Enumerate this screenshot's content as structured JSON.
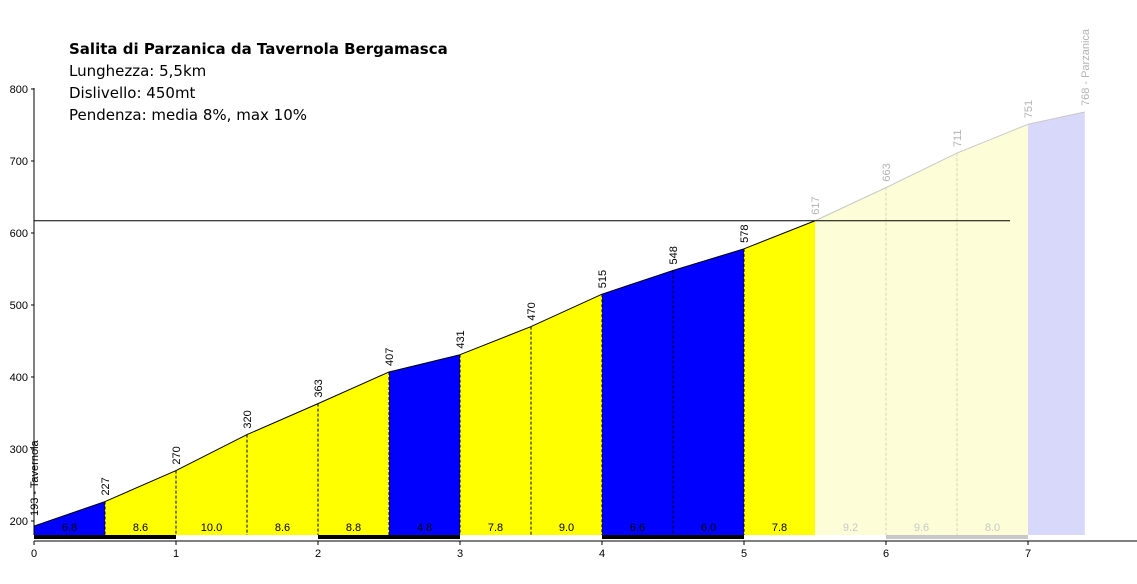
{
  "header": {
    "title": "Salita di Parzanica da Tavernola Bergamasca",
    "length_line": "Lunghezza: 5,5km",
    "climb_line": "Dislivello: 450mt",
    "grade_line": "Pendenza: media 8%, max 10%"
  },
  "chart_data": {
    "type": "area",
    "title": "Salita di Parzanica da Tavernola Bergamasca",
    "xlabel": "",
    "ylabel": "",
    "xlim": [
      0,
      7.5
    ],
    "ylim": [
      180,
      800
    ],
    "x_ticks": [
      0,
      1,
      2,
      3,
      4,
      5,
      6,
      7
    ],
    "y_ticks": [
      200,
      300,
      400,
      500,
      600,
      700,
      800
    ],
    "grid": false,
    "reference_line": 617,
    "start_label": "193 - Tavernola",
    "end_label": "768 - Parzanica",
    "points": [
      {
        "x": 0,
        "y": 193,
        "label": "193 - Tavernola"
      },
      {
        "x": 0.5,
        "y": 227,
        "label": "227"
      },
      {
        "x": 1,
        "y": 270,
        "label": "270"
      },
      {
        "x": 1.5,
        "y": 320,
        "label": "320"
      },
      {
        "x": 2,
        "y": 363,
        "label": "363"
      },
      {
        "x": 2.5,
        "y": 407,
        "label": "407"
      },
      {
        "x": 3,
        "y": 431,
        "label": "431"
      },
      {
        "x": 3.5,
        "y": 470,
        "label": "470"
      },
      {
        "x": 4,
        "y": 515,
        "label": "515"
      },
      {
        "x": 4.5,
        "y": 548,
        "label": "548"
      },
      {
        "x": 5,
        "y": 578,
        "label": "578"
      },
      {
        "x": 5.5,
        "y": 617,
        "label": "617"
      },
      {
        "x": 6,
        "y": 663,
        "label": "663"
      },
      {
        "x": 6.5,
        "y": 711,
        "label": "711"
      },
      {
        "x": 7,
        "y": 751,
        "label": "751"
      },
      {
        "x": 7.4,
        "y": 768,
        "label": "768 - Parzanica"
      }
    ],
    "segments": [
      {
        "from": 0,
        "to": 0.5,
        "grade": "6.8",
        "color": "#0000ff",
        "faded": false
      },
      {
        "from": 0.5,
        "to": 1,
        "grade": "8.6",
        "color": "#ffff00",
        "faded": false
      },
      {
        "from": 1,
        "to": 1.5,
        "grade": "10.0",
        "color": "#ffff00",
        "faded": false
      },
      {
        "from": 1.5,
        "to": 2,
        "grade": "8.6",
        "color": "#ffff00",
        "faded": false
      },
      {
        "from": 2,
        "to": 2.5,
        "grade": "8.8",
        "color": "#ffff00",
        "faded": false
      },
      {
        "from": 2.5,
        "to": 3,
        "grade": "4.8",
        "color": "#0000ff",
        "faded": false
      },
      {
        "from": 3,
        "to": 3.5,
        "grade": "7.8",
        "color": "#ffff00",
        "faded": false
      },
      {
        "from": 3.5,
        "to": 4,
        "grade": "9.0",
        "color": "#ffff00",
        "faded": false
      },
      {
        "from": 4,
        "to": 4.5,
        "grade": "6.6",
        "color": "#0000ff",
        "faded": false
      },
      {
        "from": 4.5,
        "to": 5,
        "grade": "6.0",
        "color": "#0000ff",
        "faded": false
      },
      {
        "from": 5,
        "to": 5.5,
        "grade": "7.8",
        "color": "#ffff00",
        "faded": false
      },
      {
        "from": 5.5,
        "to": 6,
        "grade": "9.2",
        "color": "#fdfdd8",
        "faded": true
      },
      {
        "from": 6,
        "to": 6.5,
        "grade": "9.6",
        "color": "#fdfdd8",
        "faded": true
      },
      {
        "from": 6.5,
        "to": 7,
        "grade": "8.0",
        "color": "#fdfdd8",
        "faded": true
      },
      {
        "from": 7,
        "to": 7.4,
        "grade": "",
        "color": "#d8d8fb",
        "faded": true
      }
    ],
    "km_bar": [
      {
        "from": 0,
        "to": 1,
        "color": "#000000"
      },
      {
        "from": 1,
        "to": 2,
        "color": "#ffffff"
      },
      {
        "from": 2,
        "to": 3,
        "color": "#000000"
      },
      {
        "from": 3,
        "to": 4,
        "color": "#ffffff"
      },
      {
        "from": 4,
        "to": 5,
        "color": "#000000"
      },
      {
        "from": 5,
        "to": 6,
        "color": "#ffffff"
      },
      {
        "from": 6,
        "to": 7,
        "color": "#c8c8c8"
      },
      {
        "from": 7,
        "to": 7.5,
        "color": "#ffffff"
      }
    ]
  }
}
